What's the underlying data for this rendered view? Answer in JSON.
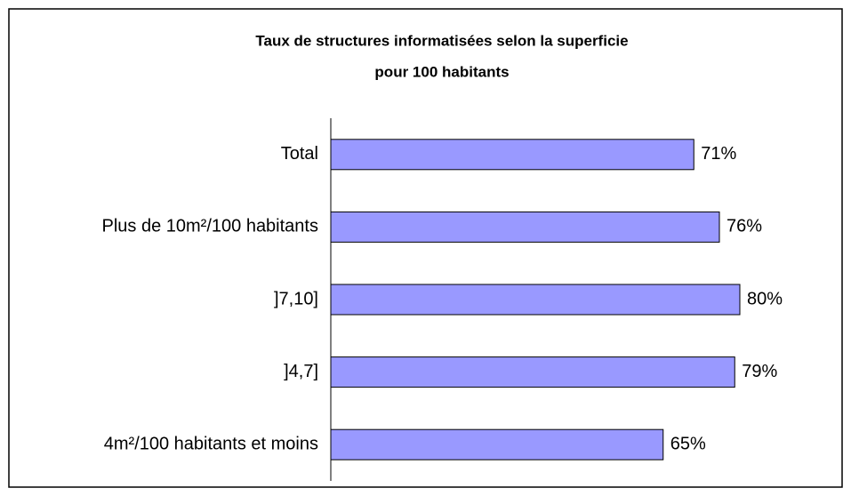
{
  "chart_data": {
    "type": "barh",
    "title_lines": [
      "Taux de structures informatisées selon la superficie",
      "pour 100 habitants"
    ],
    "categories": [
      "Total",
      "Plus de 10m²/100 habitants",
      "]7,10]",
      "]4,7]",
      "4m²/100 habitants et moins"
    ],
    "values": [
      71,
      76,
      80,
      79,
      65
    ],
    "value_labels": [
      "71%",
      "76%",
      "80%",
      "79%",
      "65%"
    ],
    "color": "#9999ff",
    "xlim": [
      0,
      100
    ]
  }
}
